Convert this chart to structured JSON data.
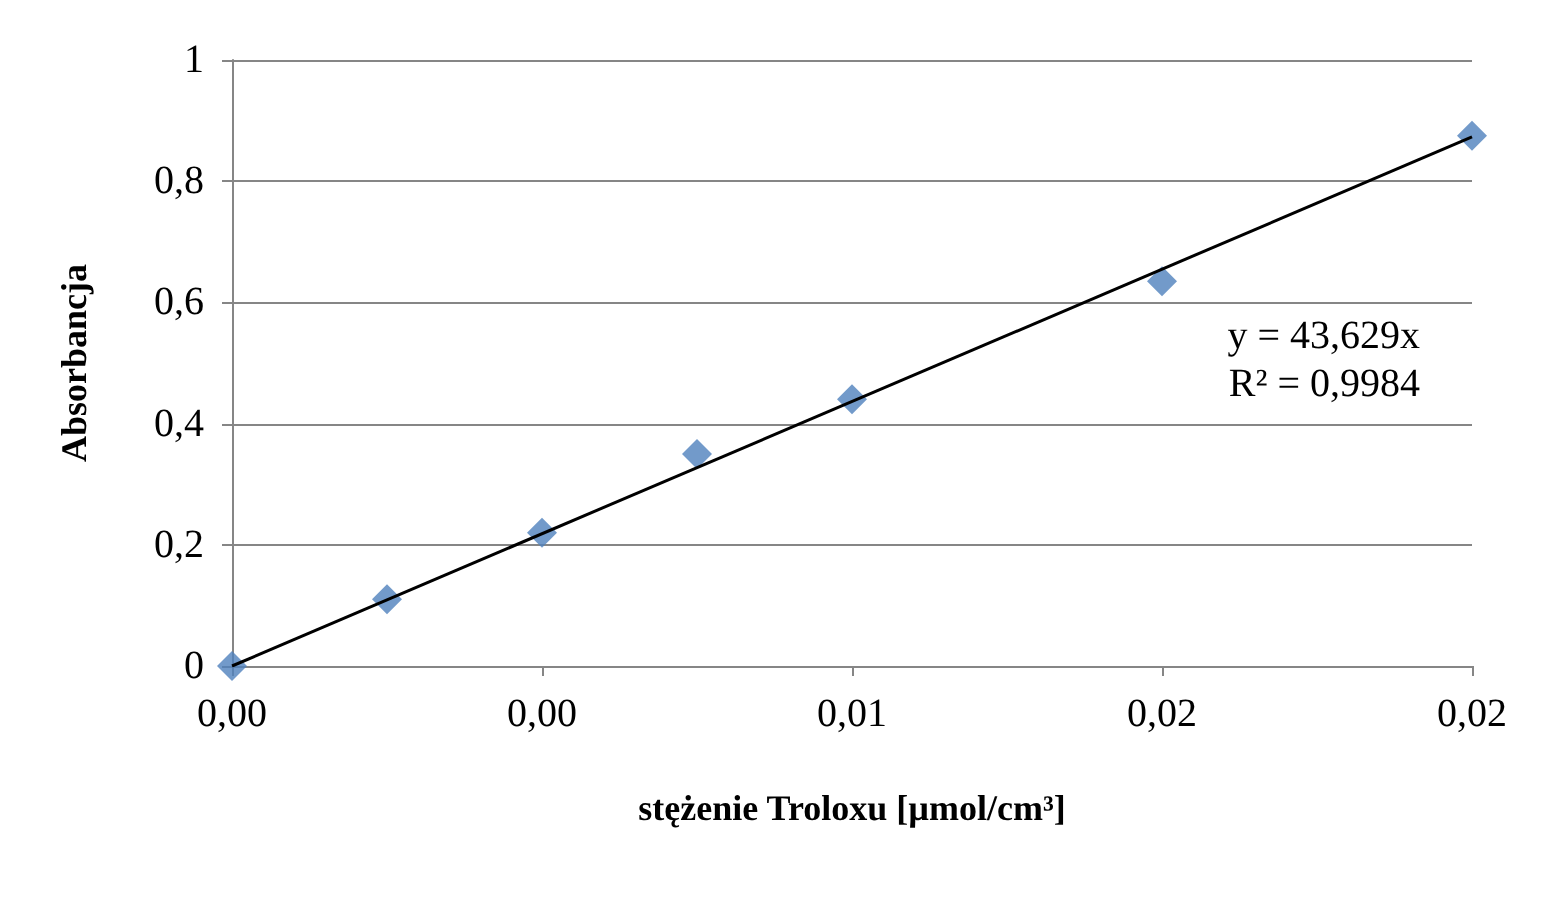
{
  "chart_data": {
    "type": "scatter",
    "xlabel": "stężenie Troloxu [µmol/cm³]",
    "ylabel": "Absorbancja",
    "x": [
      0,
      0.0025,
      0.005,
      0.0075,
      0.01,
      0.015,
      0.02
    ],
    "series": [
      {
        "color": "#4f81bd",
        "marker": "diamond",
        "values": [
          0,
          0.11,
          0.22,
          0.35,
          0.44,
          0.635,
          0.875
        ]
      },
      {
        "type": "line",
        "color": "#000000",
        "marker": "none",
        "line_style": "solid",
        "x": [
          0,
          0.02
        ],
        "values": [
          0,
          0.873
        ]
      }
    ],
    "xlim": [
      0,
      0.02
    ],
    "xticks": [
      {
        "value": 0,
        "label": "0,00"
      },
      {
        "value": 0.005,
        "label": "0,00"
      },
      {
        "value": 0.01,
        "label": "0,01"
      },
      {
        "value": 0.015,
        "label": "0,02"
      },
      {
        "value": 0.02,
        "label": "0,02"
      }
    ],
    "ylim": [
      0,
      1
    ],
    "yticks": [
      {
        "value": 0,
        "label": "0"
      },
      {
        "value": 0.2,
        "label": "0,2"
      },
      {
        "value": 0.4,
        "label": "0,4"
      },
      {
        "value": 0.6,
        "label": "0,6"
      },
      {
        "value": 0.8,
        "label": "0,8"
      },
      {
        "value": 1,
        "label": "1"
      }
    ],
    "grid": "y",
    "annotations": [
      "y = 43,629x",
      "R² = 0,9984"
    ]
  }
}
